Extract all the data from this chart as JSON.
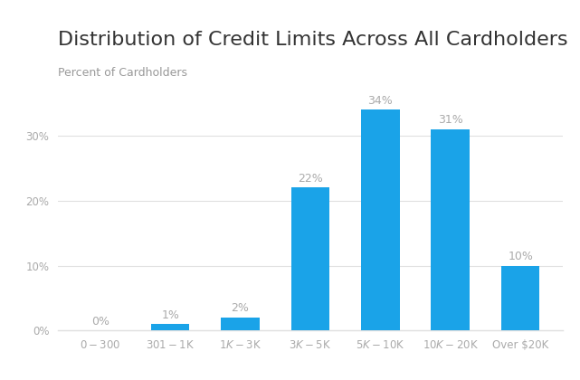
{
  "title": "Distribution of Credit Limits Across All Cardholders",
  "ylabel": "Percent of Cardholders",
  "categories": [
    "$0-$300",
    "$301-$1K",
    "$1K-$3K",
    "$3K-$5K",
    "$5K-$10K",
    "$10K-$20K",
    "Over $20K"
  ],
  "values": [
    0,
    1,
    2,
    22,
    34,
    31,
    10
  ],
  "bar_color": "#1aa3e8",
  "label_color": "#aaaaaa",
  "title_color": "#333333",
  "subtitle_color": "#999999",
  "tick_color": "#aaaaaa",
  "background_color": "#ffffff",
  "grid_color": "#e0e0e0",
  "ylim": [
    0,
    38
  ],
  "yticks": [
    0,
    10,
    20,
    30
  ],
  "bar_width": 0.55,
  "title_fontsize": 16,
  "subtitle_fontsize": 9,
  "label_fontsize": 9,
  "tick_fontsize": 8.5
}
